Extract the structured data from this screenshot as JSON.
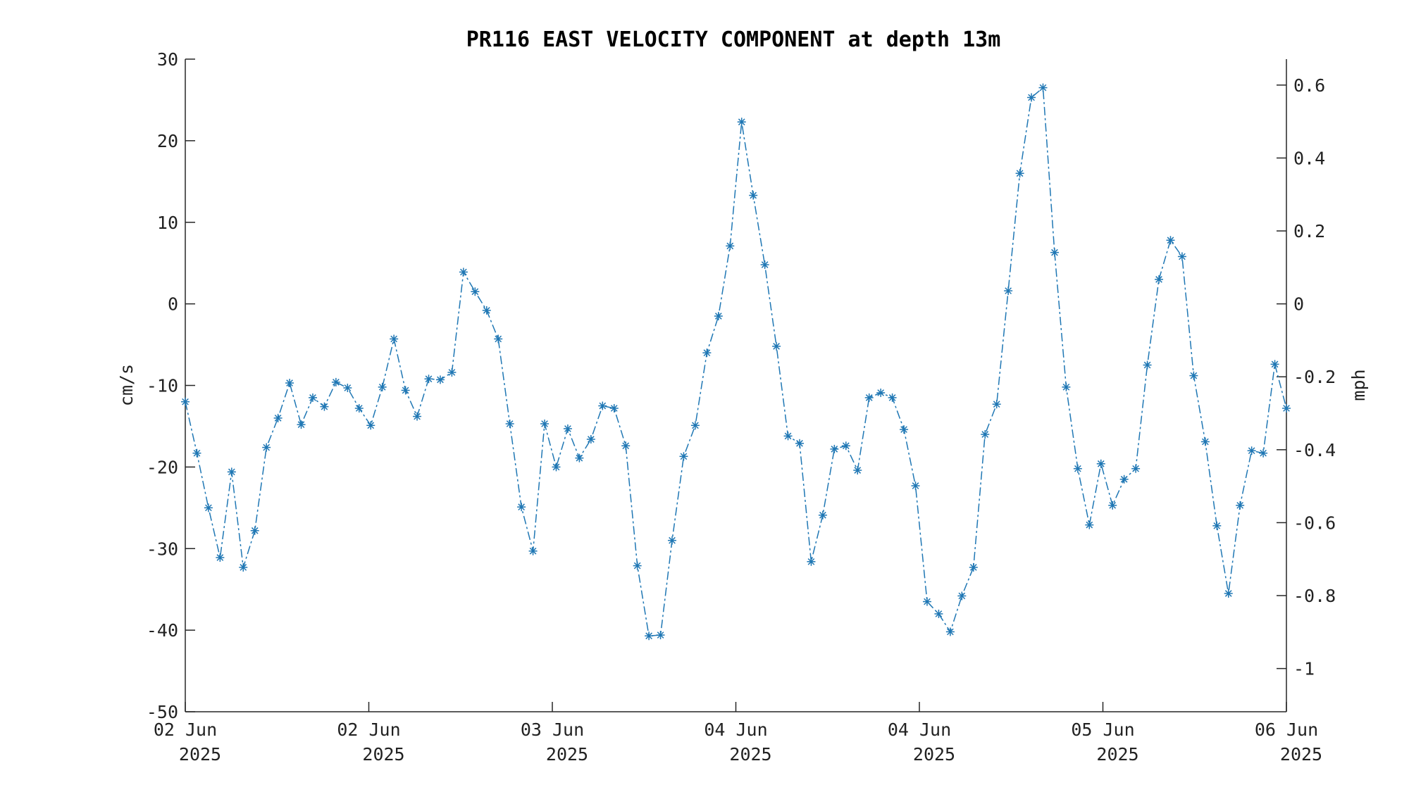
{
  "chart_data": {
    "type": "line",
    "title": "PR116 EAST VELOCITY COMPONENT at depth 13m",
    "ylabel": "cm/s",
    "y2label": "mph",
    "ylim": [
      -50,
      30
    ],
    "y2lim": [
      -1.1185,
      0.6711
    ],
    "yticks": [
      "30",
      "20",
      "10",
      "0",
      "-10",
      "-20",
      "-30",
      "-40",
      "-50"
    ],
    "y2ticks": [
      "0.6",
      "0.4",
      "0.2",
      "0",
      "-0.2",
      "-0.4",
      "-0.6",
      "-0.8",
      "-1"
    ],
    "xtick_labels": [
      [
        "02 Jun",
        "2025"
      ],
      [
        "02 Jun",
        "2025"
      ],
      [
        "03 Jun",
        "2025"
      ],
      [
        "04 Jun",
        "2025"
      ],
      [
        "04 Jun",
        "2025"
      ],
      [
        "05 Jun",
        "2025"
      ],
      [
        "06 Jun",
        "2025"
      ]
    ],
    "line_style": "dash-dot",
    "marker": "asterisk",
    "color": "#1f77b4",
    "grid": false,
    "series": [
      {
        "values": [
          -12.0,
          -18.3,
          -25.0,
          -31.1,
          -20.6,
          -32.3,
          -27.8,
          -17.6,
          -14.0,
          -9.7,
          -14.8,
          -11.5,
          -12.6,
          -9.6,
          -10.3,
          -12.8,
          -14.9,
          -10.2,
          -4.3,
          -10.6,
          -13.8,
          -9.2,
          -9.3,
          -8.4,
          3.9,
          1.5,
          -0.8,
          -4.3,
          -14.7,
          -24.9,
          -30.3,
          -14.7,
          -20.0,
          -15.3,
          -18.9,
          -16.6,
          -12.5,
          -12.8,
          -17.4,
          -32.1,
          -40.7,
          -40.6,
          -29.0,
          -18.7,
          -14.9,
          -6.0,
          -1.5,
          7.1,
          22.3,
          13.3,
          4.8,
          -5.2,
          -16.2,
          -17.1,
          -31.6,
          -25.9,
          -17.8,
          -17.4,
          -20.4,
          -11.5,
          -10.9,
          -11.5,
          -15.4,
          -22.3,
          -36.5,
          -38.0,
          -40.2,
          -35.8,
          -32.3,
          -16.0,
          -12.3,
          1.6,
          16.0,
          25.3,
          26.5,
          6.3,
          -10.2,
          -20.2,
          -27.1,
          -19.6,
          -24.7,
          -21.5,
          -20.2,
          -7.5,
          3.0,
          7.8,
          5.8,
          -8.8,
          -16.9,
          -27.2,
          -35.5,
          -24.7,
          -18.0,
          -18.3,
          -7.4,
          -12.8
        ]
      }
    ]
  }
}
